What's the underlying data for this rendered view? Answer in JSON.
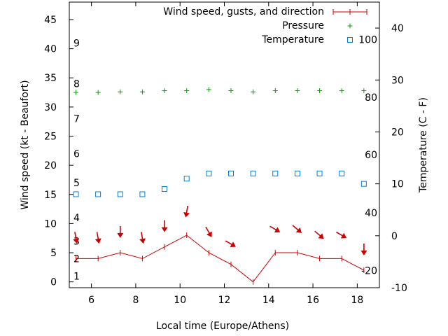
{
  "chart_data": {
    "type": "line",
    "xlabel": "Local time (Europe/Athens)",
    "ylabel_left": "Wind speed (kt - Beaufort)",
    "ylabel_right": "Temperature (C - F)",
    "xlim": [
      5,
      19
    ],
    "ylim_left": [
      -1,
      48
    ],
    "ylim_right": [
      -10,
      45
    ],
    "x_ticks": [
      6,
      8,
      10,
      12,
      14,
      16,
      18
    ],
    "y_left_ticks": [
      0,
      5,
      10,
      15,
      20,
      25,
      30,
      35,
      40,
      45
    ],
    "y_right_ticks": [
      -10,
      0,
      10,
      20,
      30,
      40
    ],
    "beaufort_labels": [
      {
        "text": "1",
        "kt": 1
      },
      {
        "text": "2",
        "kt": 4
      },
      {
        "text": "3",
        "kt": 7
      },
      {
        "text": "4",
        "kt": 11
      },
      {
        "text": "5",
        "kt": 17
      },
      {
        "text": "6",
        "kt": 22
      },
      {
        "text": "7",
        "kt": 28
      },
      {
        "text": "8",
        "kt": 34
      },
      {
        "text": "9",
        "kt": 41
      }
    ],
    "fahrenheit_labels": [
      {
        "text": "-20",
        "c": -6.7
      },
      {
        "text": "40",
        "c": 4.4
      },
      {
        "text": "60",
        "c": 15.6
      },
      {
        "text": "80",
        "c": 26.7
      },
      {
        "text": "100",
        "c": 37.8
      }
    ],
    "legend_position": "top-right",
    "series": [
      {
        "name": "Wind speed, gusts, and direction",
        "color": "#cc0000",
        "axis": "left",
        "x": [
          5.3,
          6.3,
          7.3,
          8.3,
          9.3,
          10.3,
          11.3,
          12.3,
          13.3,
          14.3,
          15.3,
          16.3,
          17.3,
          18.3
        ],
        "values": [
          4,
          4,
          5,
          4,
          6,
          8,
          5,
          3,
          0,
          5,
          5,
          4,
          4,
          2
        ],
        "gusts": [
          7.5,
          7.5,
          8.5,
          7.5,
          9.5,
          12,
          8.5,
          6.5,
          null,
          9,
          9,
          8,
          8,
          5.5
        ],
        "direction_deg": [
          350,
          350,
          0,
          350,
          0,
          10,
          330,
          300,
          null,
          300,
          310,
          310,
          300,
          0
        ]
      },
      {
        "name": "Pressure",
        "color": "#00a000",
        "axis": "left",
        "x": [
          5.3,
          6.3,
          7.3,
          8.3,
          9.3,
          10.3,
          11.3,
          12.3,
          13.3,
          14.3,
          15.3,
          16.3,
          17.3,
          18.3
        ],
        "values": [
          32.5,
          32.5,
          32.6,
          32.6,
          32.8,
          32.8,
          33,
          32.8,
          32.6,
          32.8,
          32.8,
          32.8,
          32.8,
          32.8
        ]
      },
      {
        "name": "Temperature",
        "color": "#0080d0",
        "axis": "right",
        "x": [
          5.3,
          6.3,
          7.3,
          8.3,
          9.3,
          10.3,
          11.3,
          12.3,
          13.3,
          14.3,
          15.3,
          16.3,
          17.3,
          18.3
        ],
        "values": [
          8,
          8,
          8,
          8,
          9,
          11,
          12,
          12,
          12,
          12,
          12,
          12,
          12,
          10
        ]
      }
    ]
  }
}
